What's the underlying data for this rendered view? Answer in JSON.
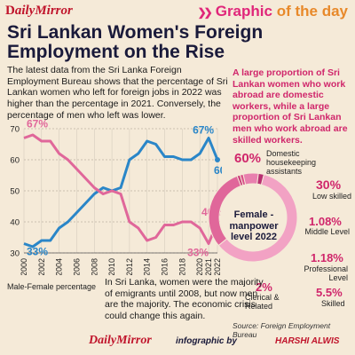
{
  "header": {
    "brand": "DailyMirror",
    "brand_prefix": "D",
    "brand_rest": "ailyMirror",
    "badge_word1": "Graphic",
    "badge_word2": "of the day"
  },
  "title": "Sri Lankan Women's Foreign Employment on the Rise",
  "intro": "The latest data from the Sri Lanka Foreign Employment Bureau shows that the percentage of Sri Lankan women who left for foreign jobs in 2022 was higher than the percentage in 2021. Conversely, the percentage of men who left was lower.",
  "pink_note": "A large proportion of Sri Lankan women who work abroad are domestic workers, while a large proportion of Sri Lankan men who work abroad are skilled workers.",
  "male_female_label": "Male-Female percentage",
  "bottom_note": "In Sri Lanka, women were the majority of emigrants until 2008, but now men are the majority. The economic crisis could change this again.",
  "source": "Source: Foreign Employment Bureau",
  "footer": {
    "brand": "DailyMirror",
    "infographic": "infographic by",
    "credit": "HARSHI ALWIS"
  },
  "colors": {
    "male": "#2a86c8",
    "female": "#e0679a",
    "accent": "#d0266b",
    "background": "#f5ead8"
  },
  "chart_data": [
    {
      "type": "line",
      "xlabel": "",
      "ylabel": "",
      "x": [
        "2000",
        "2002",
        "2004",
        "2006",
        "2008",
        "2010",
        "2012",
        "2014",
        "2016",
        "2018",
        "2020",
        "2021",
        "2022"
      ],
      "x_ticks": [
        "2000",
        "2002",
        "2004",
        "2006",
        "2008",
        "2010",
        "2012",
        "2014",
        "2016",
        "2018",
        "2020",
        "2021",
        "2022"
      ],
      "y_ticks": [
        30,
        40,
        50,
        60,
        70
      ],
      "ylim": [
        30,
        70
      ],
      "grid": true,
      "series": [
        {
          "color": "#2a86c8",
          "x": [
            2000,
            2001,
            2002,
            2003,
            2004,
            2005,
            2006,
            2007,
            2008,
            2009,
            2010,
            2011,
            2012,
            2013,
            2014,
            2015,
            2016,
            2017,
            2018,
            2019,
            2020,
            2021,
            2022
          ],
          "values": [
            33,
            32,
            34,
            34,
            38,
            40,
            43,
            46,
            49,
            51,
            50,
            51,
            60,
            62,
            66,
            65,
            61,
            61,
            60,
            60,
            62,
            67,
            60
          ]
        },
        {
          "color": "#e0679a",
          "x": [
            2000,
            2001,
            2002,
            2003,
            2004,
            2005,
            2006,
            2007,
            2008,
            2009,
            2010,
            2011,
            2012,
            2013,
            2014,
            2015,
            2016,
            2017,
            2018,
            2019,
            2020,
            2021,
            2022
          ],
          "values": [
            67,
            68,
            66,
            66,
            62,
            60,
            57,
            54,
            51,
            49,
            50,
            49,
            40,
            38,
            34,
            35,
            39,
            39,
            40,
            40,
            38,
            33,
            40
          ]
        }
      ],
      "data_labels": [
        {
          "text": "67%",
          "series": 1,
          "x": 2000
        },
        {
          "text": "33%",
          "series": 0,
          "x": 2000
        },
        {
          "text": "67%",
          "series": 0,
          "x": 2021
        },
        {
          "text": "33%",
          "series": 1,
          "x": 2021
        },
        {
          "text": "40%",
          "series": 1,
          "x": 2022
        },
        {
          "text": "60%",
          "series": 0,
          "x": 2022
        }
      ]
    },
    {
      "type": "pie",
      "title": "Female - manpower level 2022",
      "slices": [
        {
          "label": "Domestic housekeeping assistants",
          "value": 60,
          "display": "60%"
        },
        {
          "label": "Low skilled",
          "value": 30,
          "display": "30%"
        },
        {
          "label": "Middle Level",
          "value": 1.08,
          "display": "1.08%"
        },
        {
          "label": "Professional Level",
          "value": 1.18,
          "display": "1.18%"
        },
        {
          "label": "Skilled",
          "value": 5.5,
          "display": "5.5%"
        },
        {
          "label": "Clerical & Related",
          "value": 2,
          "display": "2%"
        }
      ]
    }
  ]
}
